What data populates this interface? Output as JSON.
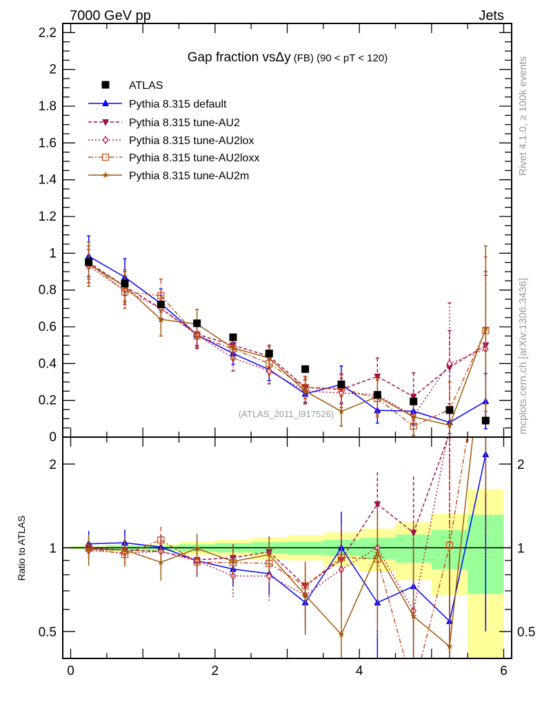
{
  "header": {
    "left": "7000 GeV pp",
    "right": "Jets"
  },
  "side": {
    "rivet": "Rivet 4.1.0, ≥ 100k events",
    "mcplots": "mcplots.cern.ch [arXiv:1306.3436]"
  },
  "watermark": "(ATLAS_2011_I917526)",
  "chart_data": {
    "type": "line",
    "title": "Gap fraction vsΔy",
    "title_suffix": "(FB) (90 < pT < 120)",
    "xlabel": "",
    "ylabel": "",
    "ratio_ylabel": "Ratio to ATLAS",
    "xlim": [
      -0.11,
      6.11
    ],
    "ylim": [
      0,
      2.25
    ],
    "ratio_ylim": [
      0.4,
      2.5
    ],
    "ratio_scale": "log",
    "x_ticks": [
      "0",
      "2",
      "4",
      "6"
    ],
    "y_ticks": [
      "0",
      "0.2",
      "0.4",
      "0.6",
      "0.8",
      "1",
      "1.2",
      "1.4",
      "1.6",
      "1.8",
      "2",
      "2.2"
    ],
    "ratio_ticks": [
      "0.5",
      "1",
      "2"
    ],
    "legend_position": "top-left",
    "x": [
      0.25,
      0.75,
      1.25,
      1.75,
      2.25,
      2.75,
      3.25,
      3.75,
      4.25,
      4.75,
      5.25,
      5.75
    ],
    "reference": {
      "name": "ATLAS",
      "values": [
        0.952,
        0.835,
        0.722,
        0.619,
        0.543,
        0.455,
        0.37,
        0.287,
        0.23,
        0.194,
        0.147,
        0.09
      ]
    },
    "ratio_bands": {
      "green_upper": [
        1.01,
        1.019,
        1.019,
        1.029,
        1.039,
        1.048,
        1.053,
        1.069,
        1.085,
        1.115,
        1.159,
        1.314
      ],
      "green_lower": [
        0.99,
        0.976,
        0.976,
        0.968,
        0.962,
        0.953,
        0.944,
        0.935,
        0.909,
        0.883,
        0.837,
        0.683
      ],
      "yellow_upper": [
        1.015,
        1.025,
        1.029,
        1.055,
        1.069,
        1.09,
        1.11,
        1.136,
        1.172,
        1.234,
        1.324,
        1.627
      ],
      "yellow_lower": [
        0.985,
        0.968,
        0.968,
        0.944,
        0.935,
        0.909,
        0.9,
        0.858,
        0.822,
        0.765,
        0.676,
        0.3
      ],
      "green_color": "#99ff99",
      "yellow_color": "#ffff99"
    },
    "series": [
      {
        "name": "Pythia 8.315 default",
        "color": "#0000ff",
        "dash": "",
        "marker": "triangle-up",
        "values": [
          0.984,
          0.87,
          0.726,
          0.556,
          0.455,
          0.367,
          0.235,
          0.287,
          0.146,
          0.141,
          0.08,
          0.195
        ],
        "errors": [
          0.11,
          0.1,
          0.08,
          0.07,
          0.06,
          0.06,
          0.05,
          0.1,
          0.07,
          0.07,
          0.06,
          0.15
        ]
      },
      {
        "name": "Pythia 8.315 tune-AU2",
        "color": "#9c0f4f",
        "dash": "5,3",
        "marker": "triangle-down",
        "values": [
          0.95,
          0.82,
          0.7,
          0.56,
          0.5,
          0.44,
          0.27,
          0.26,
          0.33,
          0.22,
          0.38,
          0.5
        ],
        "errors": [
          0.09,
          0.08,
          0.07,
          0.06,
          0.06,
          0.06,
          0.06,
          0.08,
          0.1,
          0.13,
          0.2,
          0.4
        ]
      },
      {
        "name": "Pythia 8.315 tune-AU2lox",
        "color": "#b8123e",
        "dash": "2,3",
        "marker": "diamond-open",
        "values": [
          0.93,
          0.8,
          0.7,
          0.555,
          0.43,
          0.36,
          0.25,
          0.24,
          0.23,
          0.115,
          0.4,
          0.48
        ],
        "errors": [
          0.09,
          0.08,
          0.07,
          0.06,
          0.07,
          0.07,
          0.06,
          0.08,
          0.1,
          0.12,
          0.33,
          0.4
        ]
      },
      {
        "name": "Pythia 8.315 tune-AU2loxx",
        "color": "#c8501a",
        "dash": "7,3,2,3",
        "marker": "square-open",
        "values": [
          0.95,
          0.79,
          0.77,
          0.55,
          0.48,
          0.4,
          0.27,
          0.265,
          0.21,
          0.06,
          0.15,
          0.58
        ],
        "errors": [
          0.09,
          0.09,
          0.09,
          0.07,
          0.06,
          0.06,
          0.06,
          0.08,
          0.1,
          0.05,
          0.15,
          0.4
        ]
      },
      {
        "name": "Pythia 8.315 tune-AU2m",
        "color": "#a0590a",
        "dash": "",
        "marker": "star",
        "values": [
          0.94,
          0.82,
          0.64,
          0.615,
          0.485,
          0.43,
          0.25,
          0.14,
          0.22,
          0.11,
          0.065,
          0.59
        ],
        "errors": [
          0.12,
          0.09,
          0.09,
          0.08,
          0.06,
          0.06,
          0.07,
          0.08,
          0.1,
          0.1,
          0.08,
          0.45
        ]
      }
    ]
  }
}
